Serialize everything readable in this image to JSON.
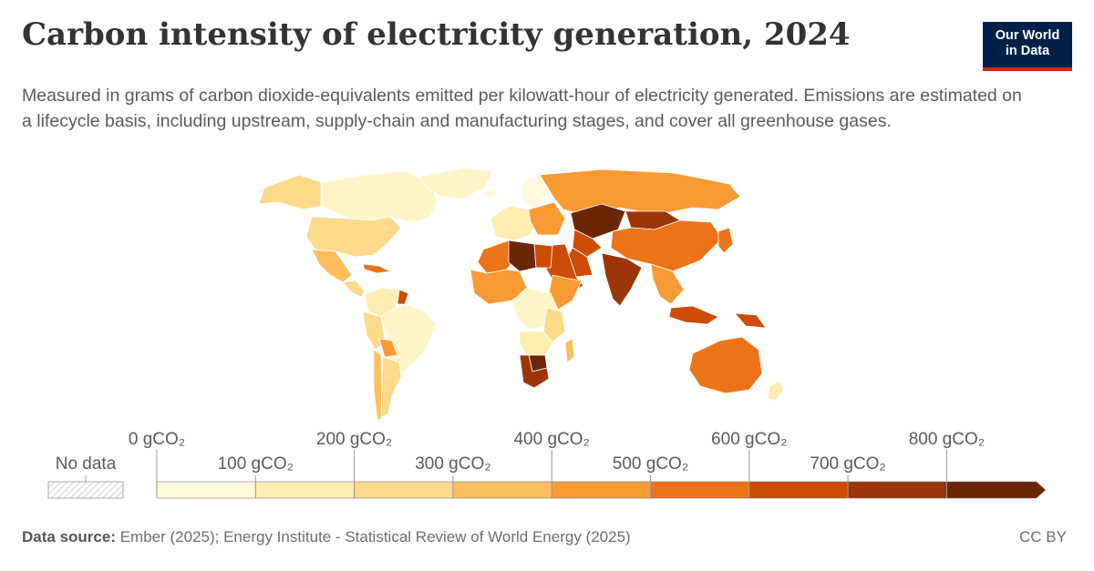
{
  "header": {
    "title": "Carbon intensity of electricity generation, 2024",
    "subtitle": "Measured in grams of carbon dioxide-equivalents emitted per kilowatt-hour of electricity generated. Emissions are estimated on a lifecycle basis, including upstream, supply-chain and manufacturing stages, and cover all greenhouse gases.",
    "logo_line1": "Our World",
    "logo_line2": "in Data"
  },
  "legend": {
    "no_data_label": "No data",
    "bins": [
      {
        "label": "0 gCO₂",
        "color": "#fef9dc"
      },
      {
        "label": "100 gCO₂",
        "color": "#fdedb0"
      },
      {
        "label": "200 gCO₂",
        "color": "#fdd98a"
      },
      {
        "label": "300 gCO₂",
        "color": "#fdbf5c"
      },
      {
        "label": "400 gCO₂",
        "color": "#f99a35"
      },
      {
        "label": "500 gCO₂",
        "color": "#ed7318"
      },
      {
        "label": "600 gCO₂",
        "color": "#cc4c05"
      },
      {
        "label": "700 gCO₂",
        "color": "#9b3505"
      },
      {
        "label": "800 gCO₂",
        "color": "#6b2608"
      }
    ]
  },
  "footer": {
    "source_label": "Data source:",
    "source_text": " Ember (2025); Energy Institute - Statistical Review of World Energy (2025)",
    "license": "CC BY"
  },
  "map_regions": {
    "canada": "#fef4c8",
    "greenland": "#fef4c8",
    "alaska": "#fdd98a",
    "usa": "#fdd98a",
    "mexico": "#fdbf5c",
    "central_america": "#fdd98a",
    "caribbean": "#ed7318",
    "colombia_venezuela": "#fdedb0",
    "brazil": "#fef4c8",
    "peru": "#fdd98a",
    "bolivia": "#f99a35",
    "argentina": "#fdd98a",
    "chile": "#fdbf5c",
    "guiana": "#cc4c05",
    "scandinavia": "#fef9dc",
    "western_europe": "#fdedb0",
    "eastern_europe": "#f99a35",
    "iceland": "#fef9dc",
    "russia": "#f99a35",
    "kazakhstan": "#6b2608",
    "mongolia": "#9b3505",
    "china": "#ed7318",
    "central_asia": "#cc4c05",
    "india": "#9b3505",
    "middle_east": "#cc4c05",
    "iran": "#cc4c05",
    "north_africa": "#ed7318",
    "libya": "#6b2608",
    "egypt": "#cc4c05",
    "west_africa": "#f99a35",
    "central_africa": "#fef4c8",
    "east_africa": "#fdd98a",
    "horn_of_africa": "#f99a35",
    "angola_zambia": "#fdedb0",
    "southern_africa": "#9b3505",
    "botswana": "#6b2608",
    "madagascar": "#fdbf5c",
    "southeast_asia": "#f99a35",
    "indonesia": "#cc4c05",
    "japan_korea": "#ed7318",
    "png": "#cc4c05",
    "australia": "#ed7318",
    "new_zealand": "#fdedb0"
  }
}
